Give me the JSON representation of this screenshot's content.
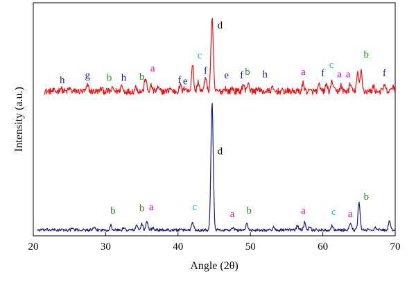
{
  "chart_data": {
    "type": "line",
    "title": "",
    "xlabel": "Angle (2θ)",
    "ylabel": "Intensity (a.u.)",
    "xlim": [
      20,
      70
    ],
    "xticks": [
      "20",
      "30",
      "40",
      "50",
      "60",
      "70"
    ],
    "ylim": [
      0,
      100
    ],
    "grid": false,
    "legend": "none",
    "label_colors": {
      "a": "#e000c8",
      "b": "#2a8a1a",
      "c": "#00c8e0",
      "d": "#000000",
      "e": "#1a1aa8",
      "f": "#1a1aa8",
      "g": "#1a1aa8",
      "h": "#1a1aa8"
    },
    "series": [
      {
        "color": "#ee1111",
        "baseline": 62,
        "noise": 1.4,
        "noise_start": 21.5,
        "noise_end": 70,
        "peaks": [
          [
            23.8,
            1.5
          ],
          [
            25.0,
            1.2
          ],
          [
            27.5,
            2.5
          ],
          [
            29.4,
            1.2
          ],
          [
            31.0,
            1.2
          ],
          [
            32.2,
            2.5
          ],
          [
            34.2,
            2.0
          ],
          [
            35.5,
            6.0
          ],
          [
            36.3,
            2.5
          ],
          [
            37.2,
            1.5
          ],
          [
            38.9,
            1.5
          ],
          [
            40.3,
            2.5
          ],
          [
            41.0,
            2.0
          ],
          [
            42.0,
            12.0
          ],
          [
            42.8,
            4.0
          ],
          [
            43.8,
            6.5
          ],
          [
            44.7,
            31.0
          ],
          [
            46.5,
            1.5
          ],
          [
            47.5,
            1.5
          ],
          [
            49.0,
            3.0
          ],
          [
            49.7,
            4.0
          ],
          [
            51.0,
            1.5
          ],
          [
            53.0,
            1.2
          ],
          [
            57.3,
            3.5
          ],
          [
            59.5,
            2.5
          ],
          [
            60.5,
            3.0
          ],
          [
            61.3,
            4.5
          ],
          [
            62.5,
            2.5
          ],
          [
            63.8,
            3.0
          ],
          [
            64.8,
            7.5
          ],
          [
            65.3,
            9.0
          ],
          [
            67.0,
            2.0
          ],
          [
            68.5,
            2.5
          ],
          [
            69.7,
            2.5
          ]
        ],
        "peak_labels": [
          {
            "label": "h",
            "x": 24.0,
            "y": 65.5
          },
          {
            "label": "g",
            "x": 27.5,
            "y": 67.5
          },
          {
            "label": "b",
            "x": 30.5,
            "y": 66.5
          },
          {
            "label": "h",
            "x": 32.5,
            "y": 66.5
          },
          {
            "label": "b",
            "x": 35.0,
            "y": 67.0
          },
          {
            "label": "a",
            "x": 36.5,
            "y": 70.5
          },
          {
            "label": "f",
            "x": 40.2,
            "y": 65.5
          },
          {
            "label": "e",
            "x": 41.0,
            "y": 65.0
          },
          {
            "label": "c",
            "x": 43.0,
            "y": 76.0
          },
          {
            "label": "f",
            "x": 43.8,
            "y": 69.5
          },
          {
            "label": "d",
            "x": 45.8,
            "y": 89.0
          },
          {
            "label": "e",
            "x": 46.7,
            "y": 67.5
          },
          {
            "label": "f",
            "x": 48.8,
            "y": 67.5
          },
          {
            "label": "b",
            "x": 49.6,
            "y": 69.0
          },
          {
            "label": "h",
            "x": 52.0,
            "y": 68.0
          },
          {
            "label": "a",
            "x": 57.3,
            "y": 69.0
          },
          {
            "label": "f",
            "x": 60.0,
            "y": 68.5
          },
          {
            "label": "c",
            "x": 61.2,
            "y": 72.0
          },
          {
            "label": "a",
            "x": 62.3,
            "y": 68.0
          },
          {
            "label": "a",
            "x": 63.5,
            "y": 68.0
          },
          {
            "label": "b",
            "x": 66.0,
            "y": 76.5
          },
          {
            "label": "f",
            "x": 68.5,
            "y": 68.5
          }
        ]
      },
      {
        "color": "#1a1a80",
        "baseline": 2.5,
        "noise": 0.6,
        "noise_start": 20.5,
        "noise_end": 70,
        "peaks": [
          [
            25.4,
            0.8
          ],
          [
            28.4,
            0.8
          ],
          [
            30.7,
            2.0
          ],
          [
            32.5,
            0.8
          ],
          [
            34.3,
            2.0
          ],
          [
            35.0,
            2.5
          ],
          [
            35.7,
            3.5
          ],
          [
            36.5,
            1.0
          ],
          [
            42.0,
            3.5
          ],
          [
            44.7,
            55.0
          ],
          [
            47.6,
            0.8
          ],
          [
            49.5,
            2.5
          ],
          [
            53.2,
            1.0
          ],
          [
            56.5,
            2.0
          ],
          [
            57.5,
            3.5
          ],
          [
            58.2,
            1.5
          ],
          [
            61.3,
            2.0
          ],
          [
            63.8,
            3.0
          ],
          [
            65.0,
            12.5
          ],
          [
            67.2,
            1.0
          ],
          [
            69.2,
            3.5
          ]
        ],
        "peak_labels": [
          {
            "label": "b",
            "x": 31.0,
            "y": 9.5
          },
          {
            "label": "b",
            "x": 35.0,
            "y": 10.5
          },
          {
            "label": "a",
            "x": 36.3,
            "y": 11.0
          },
          {
            "label": "c",
            "x": 42.3,
            "y": 11.0
          },
          {
            "label": "d",
            "x": 45.8,
            "y": 35.0
          },
          {
            "label": "a",
            "x": 47.5,
            "y": 8.0
          },
          {
            "label": "b",
            "x": 49.8,
            "y": 9.5
          },
          {
            "label": "a",
            "x": 57.3,
            "y": 9.5
          },
          {
            "label": "c",
            "x": 61.5,
            "y": 9.0
          },
          {
            "label": "a",
            "x": 63.8,
            "y": 8.0
          },
          {
            "label": "b",
            "x": 66.0,
            "y": 15.5
          }
        ]
      }
    ]
  }
}
